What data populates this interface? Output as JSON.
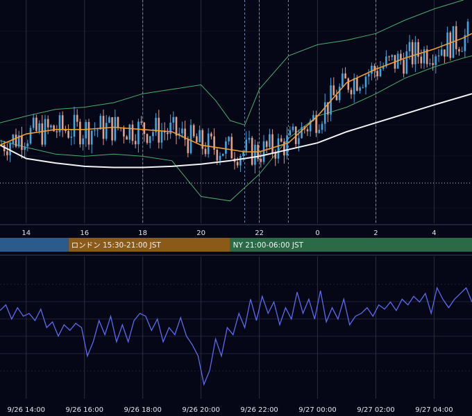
{
  "colors": {
    "background": "#050616",
    "grid": "#2a2e45",
    "candle_up": "#3fa7e0",
    "candle_down": "#e3a08c",
    "sma_short": "#f0a030",
    "sma_long": "#f4f4f4",
    "bollinger": "#4ab06a",
    "oscillator": "#5b6cf2",
    "session_tokyo": "#2b5a8c",
    "session_london": "#8a5a18",
    "session_ny": "#2a6a46"
  },
  "chart_data": [
    {
      "type": "candlestick",
      "x_tick_labels": [
        "14",
        "16",
        "18",
        "20",
        "22",
        "0",
        "2",
        "4"
      ],
      "x_ticks_hours": [
        14,
        16,
        18,
        20,
        22,
        24,
        26,
        28
      ],
      "x_range_hours": [
        13.1,
        29.3
      ],
      "y_range": [
        0,
        100
      ],
      "grid": true,
      "session_markers_hours": [
        18,
        21.5,
        22,
        23,
        26
      ],
      "reference_level": 18,
      "series": [
        {
          "kind": "sma_short",
          "x": [
            13.1,
            14,
            15,
            16,
            17,
            18,
            19,
            20,
            21,
            21.5,
            22,
            23,
            24,
            25,
            26,
            27,
            28,
            29,
            29.3
          ],
          "y": [
            35,
            40,
            42,
            42,
            43,
            42,
            41,
            35,
            33,
            32,
            32,
            36,
            48,
            63,
            69,
            74,
            78,
            83,
            85
          ]
        },
        {
          "kind": "sma_long",
          "x": [
            13.1,
            14,
            15,
            16,
            17,
            18,
            19,
            20,
            21,
            22,
            23,
            24,
            25,
            26,
            27,
            28,
            29.3
          ],
          "y": [
            35,
            29,
            27,
            25.5,
            25,
            25,
            25.5,
            26.5,
            28,
            30,
            33,
            36,
            41,
            45,
            49,
            53,
            58
          ]
        },
        {
          "kind": "bollinger_upper",
          "x": [
            13.1,
            14,
            15,
            16,
            17,
            18,
            19,
            20,
            20.5,
            21,
            21.5,
            22,
            23,
            24,
            25,
            26,
            27,
            28,
            29,
            29.3
          ],
          "y": [
            45,
            48,
            51,
            52,
            54,
            58,
            60,
            62,
            55,
            46,
            44,
            60,
            75,
            80,
            82,
            85,
            91,
            96,
            100,
            102
          ]
        },
        {
          "kind": "bollinger_lower",
          "x": [
            13.1,
            14,
            15,
            16,
            17,
            18,
            19,
            20,
            21,
            21.5,
            22,
            23,
            24,
            25,
            26,
            27,
            28,
            29,
            29.3
          ],
          "y": [
            37,
            34,
            31,
            30,
            31,
            30,
            28,
            12,
            10,
            16,
            22,
            38,
            48,
            52,
            58,
            65,
            70,
            74,
            75
          ]
        }
      ]
    },
    {
      "type": "line",
      "x_tick_labels": [
        "9/26 14:00",
        "9/26 16:00",
        "9/26 18:00",
        "9/26 20:00",
        "9/26 22:00",
        "9/27 00:00",
        "9/27 02:00",
        "9/27 04:00"
      ],
      "x_ticks_hours": [
        14,
        16,
        18,
        20,
        22,
        24,
        26,
        28
      ],
      "x_range_hours": [
        13.1,
        29.3
      ],
      "y_range": [
        0,
        100
      ],
      "grid": true,
      "series": [
        {
          "kind": "oscillator",
          "x": [
            13.1,
            13.3,
            13.5,
            13.7,
            13.9,
            14.1,
            14.3,
            14.5,
            14.7,
            14.9,
            15.1,
            15.3,
            15.5,
            15.7,
            15.9,
            16.1,
            16.3,
            16.5,
            16.7,
            16.9,
            17.1,
            17.3,
            17.5,
            17.7,
            17.9,
            18.1,
            18.3,
            18.5,
            18.7,
            18.9,
            19.1,
            19.3,
            19.5,
            19.7,
            19.9,
            20.1,
            20.3,
            20.5,
            20.7,
            20.9,
            21.1,
            21.3,
            21.5,
            21.7,
            21.9,
            22.1,
            22.3,
            22.5,
            22.7,
            22.9,
            23.1,
            23.3,
            23.5,
            23.7,
            23.9,
            24.1,
            24.3,
            24.5,
            24.7,
            24.9,
            25.1,
            25.3,
            25.5,
            25.7,
            25.9,
            26.1,
            26.3,
            26.5,
            26.7,
            26.9,
            27.1,
            27.3,
            27.5,
            27.7,
            27.9,
            28.1,
            28.3,
            28.5,
            28.7,
            28.9,
            29.1,
            29.3
          ],
          "y": [
            62,
            66,
            56,
            64,
            58,
            60,
            55,
            63,
            50,
            54,
            44,
            52,
            48,
            53,
            50,
            30,
            40,
            55,
            45,
            58,
            40,
            52,
            40,
            55,
            60,
            58,
            48,
            56,
            40,
            50,
            45,
            57,
            44,
            38,
            30,
            10,
            20,
            42,
            30,
            50,
            45,
            60,
            50,
            70,
            55,
            72,
            60,
            68,
            52,
            64,
            56,
            75,
            60,
            70,
            56,
            76,
            54,
            64,
            56,
            70,
            52,
            58,
            60,
            64,
            58,
            66,
            63,
            68,
            62,
            70,
            66,
            72,
            68,
            74,
            60,
            78,
            70,
            64,
            70,
            74,
            78,
            68
          ]
        }
      ]
    }
  ],
  "sessions": [
    {
      "label": "",
      "start_hour": 13.1,
      "end_hour": 15.45
    },
    {
      "label": "ロンドン 15:30-21:00 JST",
      "start_hour": 15.45,
      "end_hour": 21
    },
    {
      "label": "NY 21:00-06:00 JST",
      "start_hour": 21,
      "end_hour": 29.3
    }
  ]
}
